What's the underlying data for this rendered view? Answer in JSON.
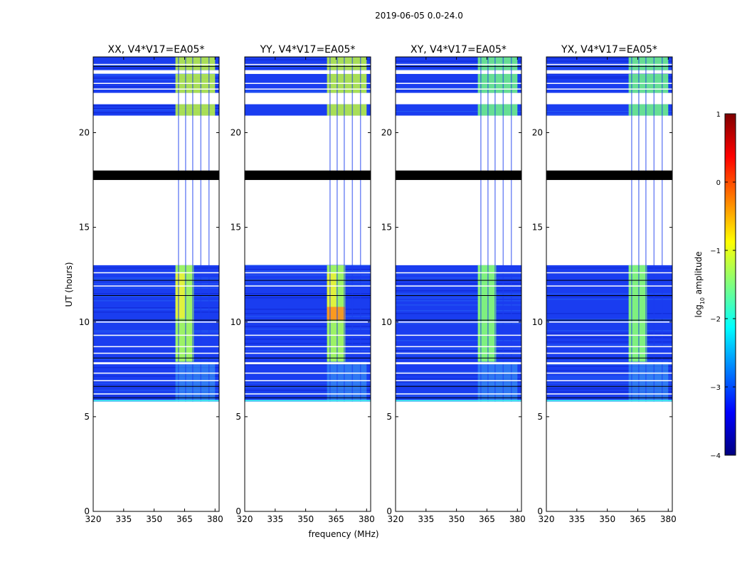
{
  "figure": {
    "suptitle": "2019-06-05 0.0-24.0",
    "xlabel": "frequency (MHz)",
    "ylabel": "UT (hours)"
  },
  "colorbar": {
    "label_prefix": "log",
    "label_sub": "10",
    "label_suffix": " amplitude",
    "range": [
      -4,
      1
    ],
    "ticks": [
      1,
      0,
      -1,
      -2,
      -3,
      -4
    ],
    "stops": [
      "#00007f",
      "#0000ff",
      "#007fff",
      "#00ffff",
      "#7fff7f",
      "#ffff00",
      "#ff7f00",
      "#ff0000",
      "#7f0000"
    ]
  },
  "chart_data": {
    "type": "heatmap",
    "title": "2019-06-05 0.0-24.0",
    "xlabel": "frequency (MHz)",
    "ylabel": "UT (hours)",
    "xlim": [
      320,
      382
    ],
    "ylim": [
      0,
      24
    ],
    "xticks": [
      320,
      335,
      350,
      365,
      380
    ],
    "yticks": [
      0,
      5,
      10,
      15,
      20
    ],
    "value_label": "log10 amplitude",
    "value_range": [
      -4,
      1
    ],
    "flagged_band_hours": [
      17.5,
      18.0
    ],
    "data_blocks_hours": [
      [
        5.8,
        13.0
      ],
      [
        20.9,
        21.5
      ],
      [
        22.1,
        23.1
      ],
      [
        23.3,
        24.0
      ]
    ],
    "bright_freq_bands_mhz": [
      [
        360.5,
        369.5
      ]
    ],
    "panels": [
      {
        "title": "XX, V4*V17=EA05*"
      },
      {
        "title": "YY, V4*V17=EA05*"
      },
      {
        "title": "XY, V4*V17=EA05*"
      },
      {
        "title": "YX, V4*V17=EA05*"
      }
    ]
  }
}
